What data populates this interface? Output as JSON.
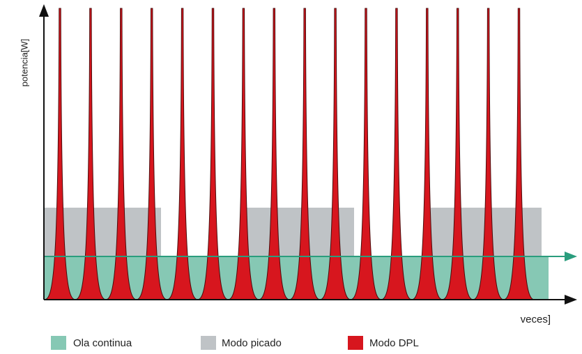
{
  "y_axis_label": "potencia[W]",
  "x_axis_label": "veces]",
  "legend": [
    "Ola continua",
    "Modo picado",
    "Modo DPL"
  ]
}
